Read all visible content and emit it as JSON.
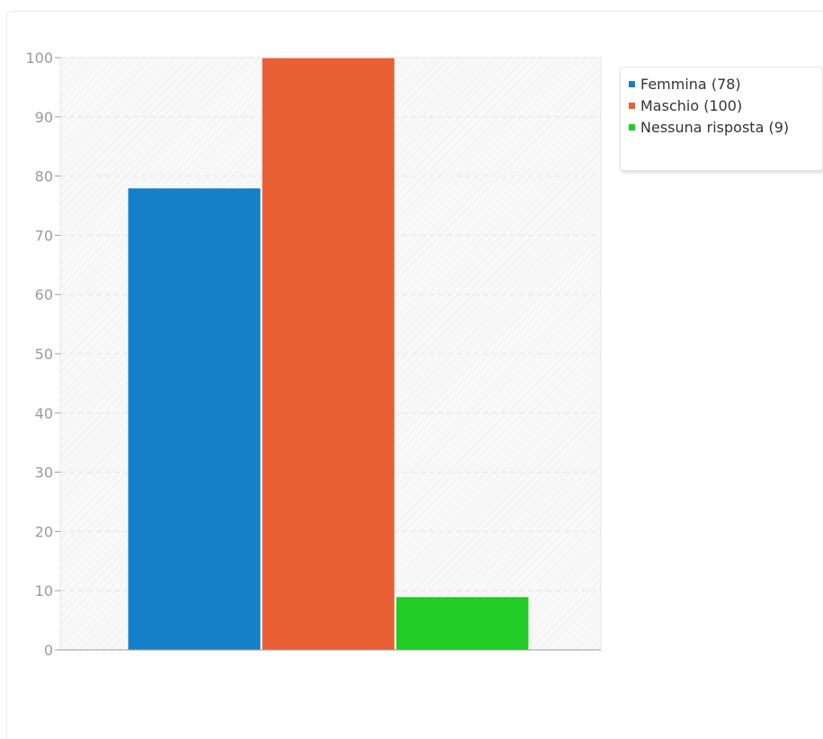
{
  "chart_data": {
    "type": "bar",
    "categories": [
      ""
    ],
    "series": [
      {
        "name": "Femmina (78)",
        "values": [
          78
        ],
        "color": "#1380c9"
      },
      {
        "name": "Maschio (100)",
        "values": [
          100
        ],
        "color": "#e86033"
      },
      {
        "name": "Nessuna risposta (9)",
        "values": [
          9
        ],
        "color": "#20cc25"
      }
    ],
    "ylim": [
      0,
      100
    ],
    "yticks": [
      "0",
      "10",
      "20",
      "30",
      "40",
      "50",
      "60",
      "70",
      "80",
      "90",
      "100"
    ],
    "grid": true,
    "legend_position": "right",
    "title": "",
    "xlabel": "",
    "ylabel": ""
  }
}
